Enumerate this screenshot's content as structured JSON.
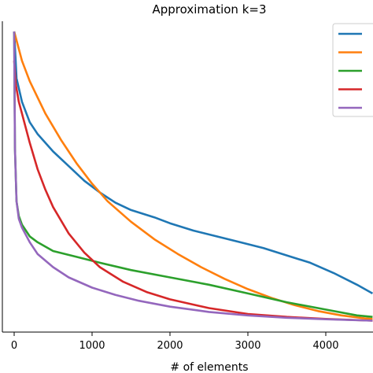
{
  "chart_data": {
    "type": "line",
    "title": "Approximation k=3",
    "xlabel": "# of elements",
    "ylabel": "",
    "xlim": [
      -150,
      4600
    ],
    "ylim": [
      -0.02,
      1.03
    ],
    "xticks": [
      0,
      1000,
      2000,
      3000,
      4000
    ],
    "xtick_labels": [
      "0",
      "1000",
      "2000",
      "3000",
      "4000"
    ],
    "yticks_visible": false,
    "grid": false,
    "legend": "top-right",
    "series": [
      {
        "color": "#1f77b4",
        "x": [
          0,
          30,
          100,
          200,
          300,
          500,
          700,
          900,
          1100,
          1300,
          1500,
          1800,
          2000,
          2300,
          2600,
          2900,
          3200,
          3500,
          3800,
          4100,
          4400,
          4600
        ],
        "y": [
          1.0,
          0.84,
          0.76,
          0.69,
          0.65,
          0.59,
          0.54,
          0.49,
          0.45,
          0.415,
          0.39,
          0.365,
          0.345,
          0.32,
          0.3,
          0.28,
          0.26,
          0.235,
          0.21,
          0.175,
          0.135,
          0.105
        ]
      },
      {
        "color": "#ff7f0e",
        "x": [
          0,
          100,
          200,
          400,
          600,
          800,
          1000,
          1200,
          1500,
          1800,
          2100,
          2400,
          2700,
          3000,
          3300,
          3600,
          3900,
          4200,
          4500,
          4600
        ],
        "y": [
          1.0,
          0.9,
          0.83,
          0.72,
          0.63,
          0.55,
          0.48,
          0.42,
          0.35,
          0.29,
          0.24,
          0.195,
          0.155,
          0.12,
          0.09,
          0.065,
          0.045,
          0.03,
          0.02,
          0.018
        ]
      },
      {
        "color": "#2ca02c",
        "x": [
          0,
          10,
          30,
          60,
          100,
          200,
          300,
          500,
          800,
          1100,
          1500,
          2000,
          2500,
          3000,
          3500,
          4000,
          4400,
          4600
        ],
        "y": [
          1.0,
          0.6,
          0.42,
          0.37,
          0.34,
          0.3,
          0.28,
          0.25,
          0.23,
          0.21,
          0.185,
          0.16,
          0.135,
          0.105,
          0.075,
          0.05,
          0.03,
          0.025
        ]
      },
      {
        "color": "#d62728",
        "x": [
          0,
          20,
          60,
          100,
          200,
          300,
          400,
          500,
          700,
          900,
          1100,
          1400,
          1700,
          2000,
          2500,
          3000,
          3500,
          4000,
          4600
        ],
        "y": [
          0.9,
          0.82,
          0.76,
          0.72,
          0.62,
          0.53,
          0.46,
          0.4,
          0.31,
          0.245,
          0.195,
          0.145,
          0.11,
          0.085,
          0.055,
          0.035,
          0.025,
          0.018,
          0.012
        ]
      },
      {
        "color": "#9467bd",
        "x": [
          0,
          10,
          30,
          60,
          100,
          200,
          300,
          500,
          700,
          1000,
          1300,
          1600,
          2000,
          2500,
          3000,
          3500,
          4000,
          4600
        ],
        "y": [
          1.0,
          0.6,
          0.42,
          0.36,
          0.33,
          0.28,
          0.24,
          0.195,
          0.16,
          0.125,
          0.1,
          0.08,
          0.06,
          0.042,
          0.03,
          0.022,
          0.017,
          0.012
        ]
      }
    ]
  }
}
